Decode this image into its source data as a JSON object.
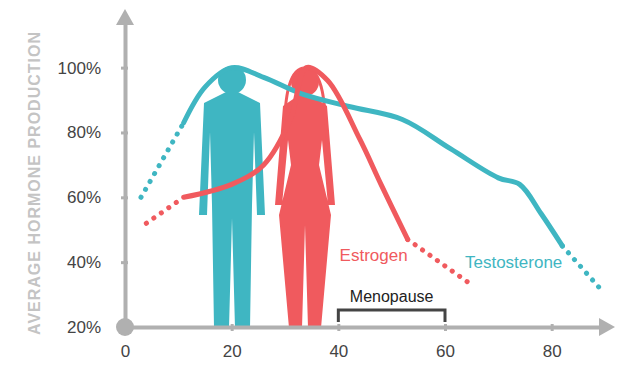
{
  "chart_data": {
    "type": "line",
    "y_label": "AVERAGE HORMONE PRODUCTION",
    "xlim": [
      0,
      90
    ],
    "xticks": [
      0,
      20,
      40,
      60,
      80
    ],
    "ylim": [
      20,
      115
    ],
    "yticks": [
      {
        "value": 20,
        "label": "20%"
      },
      {
        "value": 40,
        "label": "40%"
      },
      {
        "value": 60,
        "label": "60%"
      },
      {
        "value": 80,
        "label": "80%"
      },
      {
        "value": 100,
        "label": "100%"
      }
    ],
    "grid": false,
    "series": [
      {
        "name": "Testosterone",
        "color": "#3fb6c2",
        "line_style": "solid",
        "x": [
          11,
          15,
          20,
          26,
          33,
          42,
          52,
          61,
          70,
          74,
          78,
          82
        ],
        "values": [
          83,
          94,
          100,
          97,
          92,
          88,
          84,
          75,
          66,
          64,
          55,
          45
        ]
      },
      {
        "color": "#3fb6c2",
        "line_style": "dotted",
        "x": [
          3,
          11
        ],
        "values": [
          60,
          83
        ]
      },
      {
        "color": "#3fb6c2",
        "line_style": "dotted",
        "x": [
          82,
          89
        ],
        "values": [
          45,
          32
        ]
      },
      {
        "name": "Estrogen",
        "color": "#f05a5e",
        "line_style": "solid",
        "x": [
          11,
          20,
          26,
          31,
          34,
          38,
          44,
          48,
          53
        ],
        "values": [
          60,
          64,
          70,
          84,
          100,
          96,
          78,
          64,
          47
        ]
      },
      {
        "color": "#f05a5e",
        "line_style": "dotted",
        "x": [
          4,
          11
        ],
        "values": [
          52,
          60
        ]
      },
      {
        "color": "#f05a5e",
        "line_style": "dotted",
        "x": [
          53,
          65
        ],
        "values": [
          47,
          33
        ]
      }
    ],
    "annotations": [
      {
        "text": "Menopause",
        "x_start": 40,
        "x_end": 60
      }
    ]
  }
}
